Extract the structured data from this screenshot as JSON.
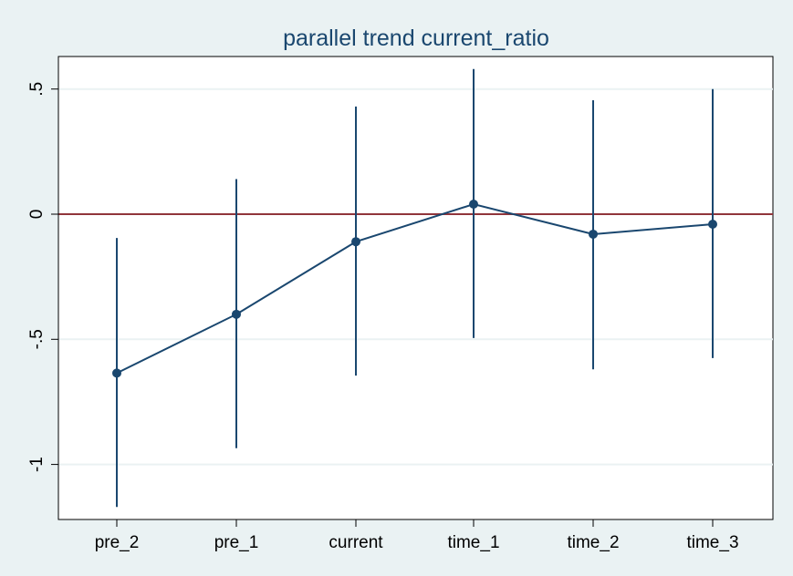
{
  "chart_data": {
    "type": "line",
    "title": "parallel trend current_ratio",
    "xlabel": "",
    "ylabel": "",
    "categories": [
      "pre_2",
      "pre_1",
      "current",
      "time_1",
      "time_2",
      "time_3"
    ],
    "series": [
      {
        "values": [
          -0.635,
          -0.4,
          -0.11,
          0.04,
          -0.08,
          -0.04
        ],
        "ci_lower": [
          -1.17,
          -0.935,
          -0.645,
          -0.495,
          -0.62,
          -0.575
        ],
        "ci_upper": [
          -0.095,
          0.14,
          0.43,
          0.58,
          0.455,
          0.5
        ]
      }
    ],
    "ylim": [
      -1.22,
      0.63
    ],
    "yticks": [
      0.5,
      0,
      -0.5,
      -1
    ],
    "ytick_labels": [
      ".5",
      "0",
      "-.5",
      "-1"
    ],
    "reference_line": {
      "y": 0,
      "color": "#90353b"
    },
    "grid": true,
    "colors": {
      "series": "#1a476f",
      "background": "#eaf2f3",
      "plot_background": "#ffffff",
      "grid": "#eaf2f3",
      "title": "#1a476f"
    }
  }
}
